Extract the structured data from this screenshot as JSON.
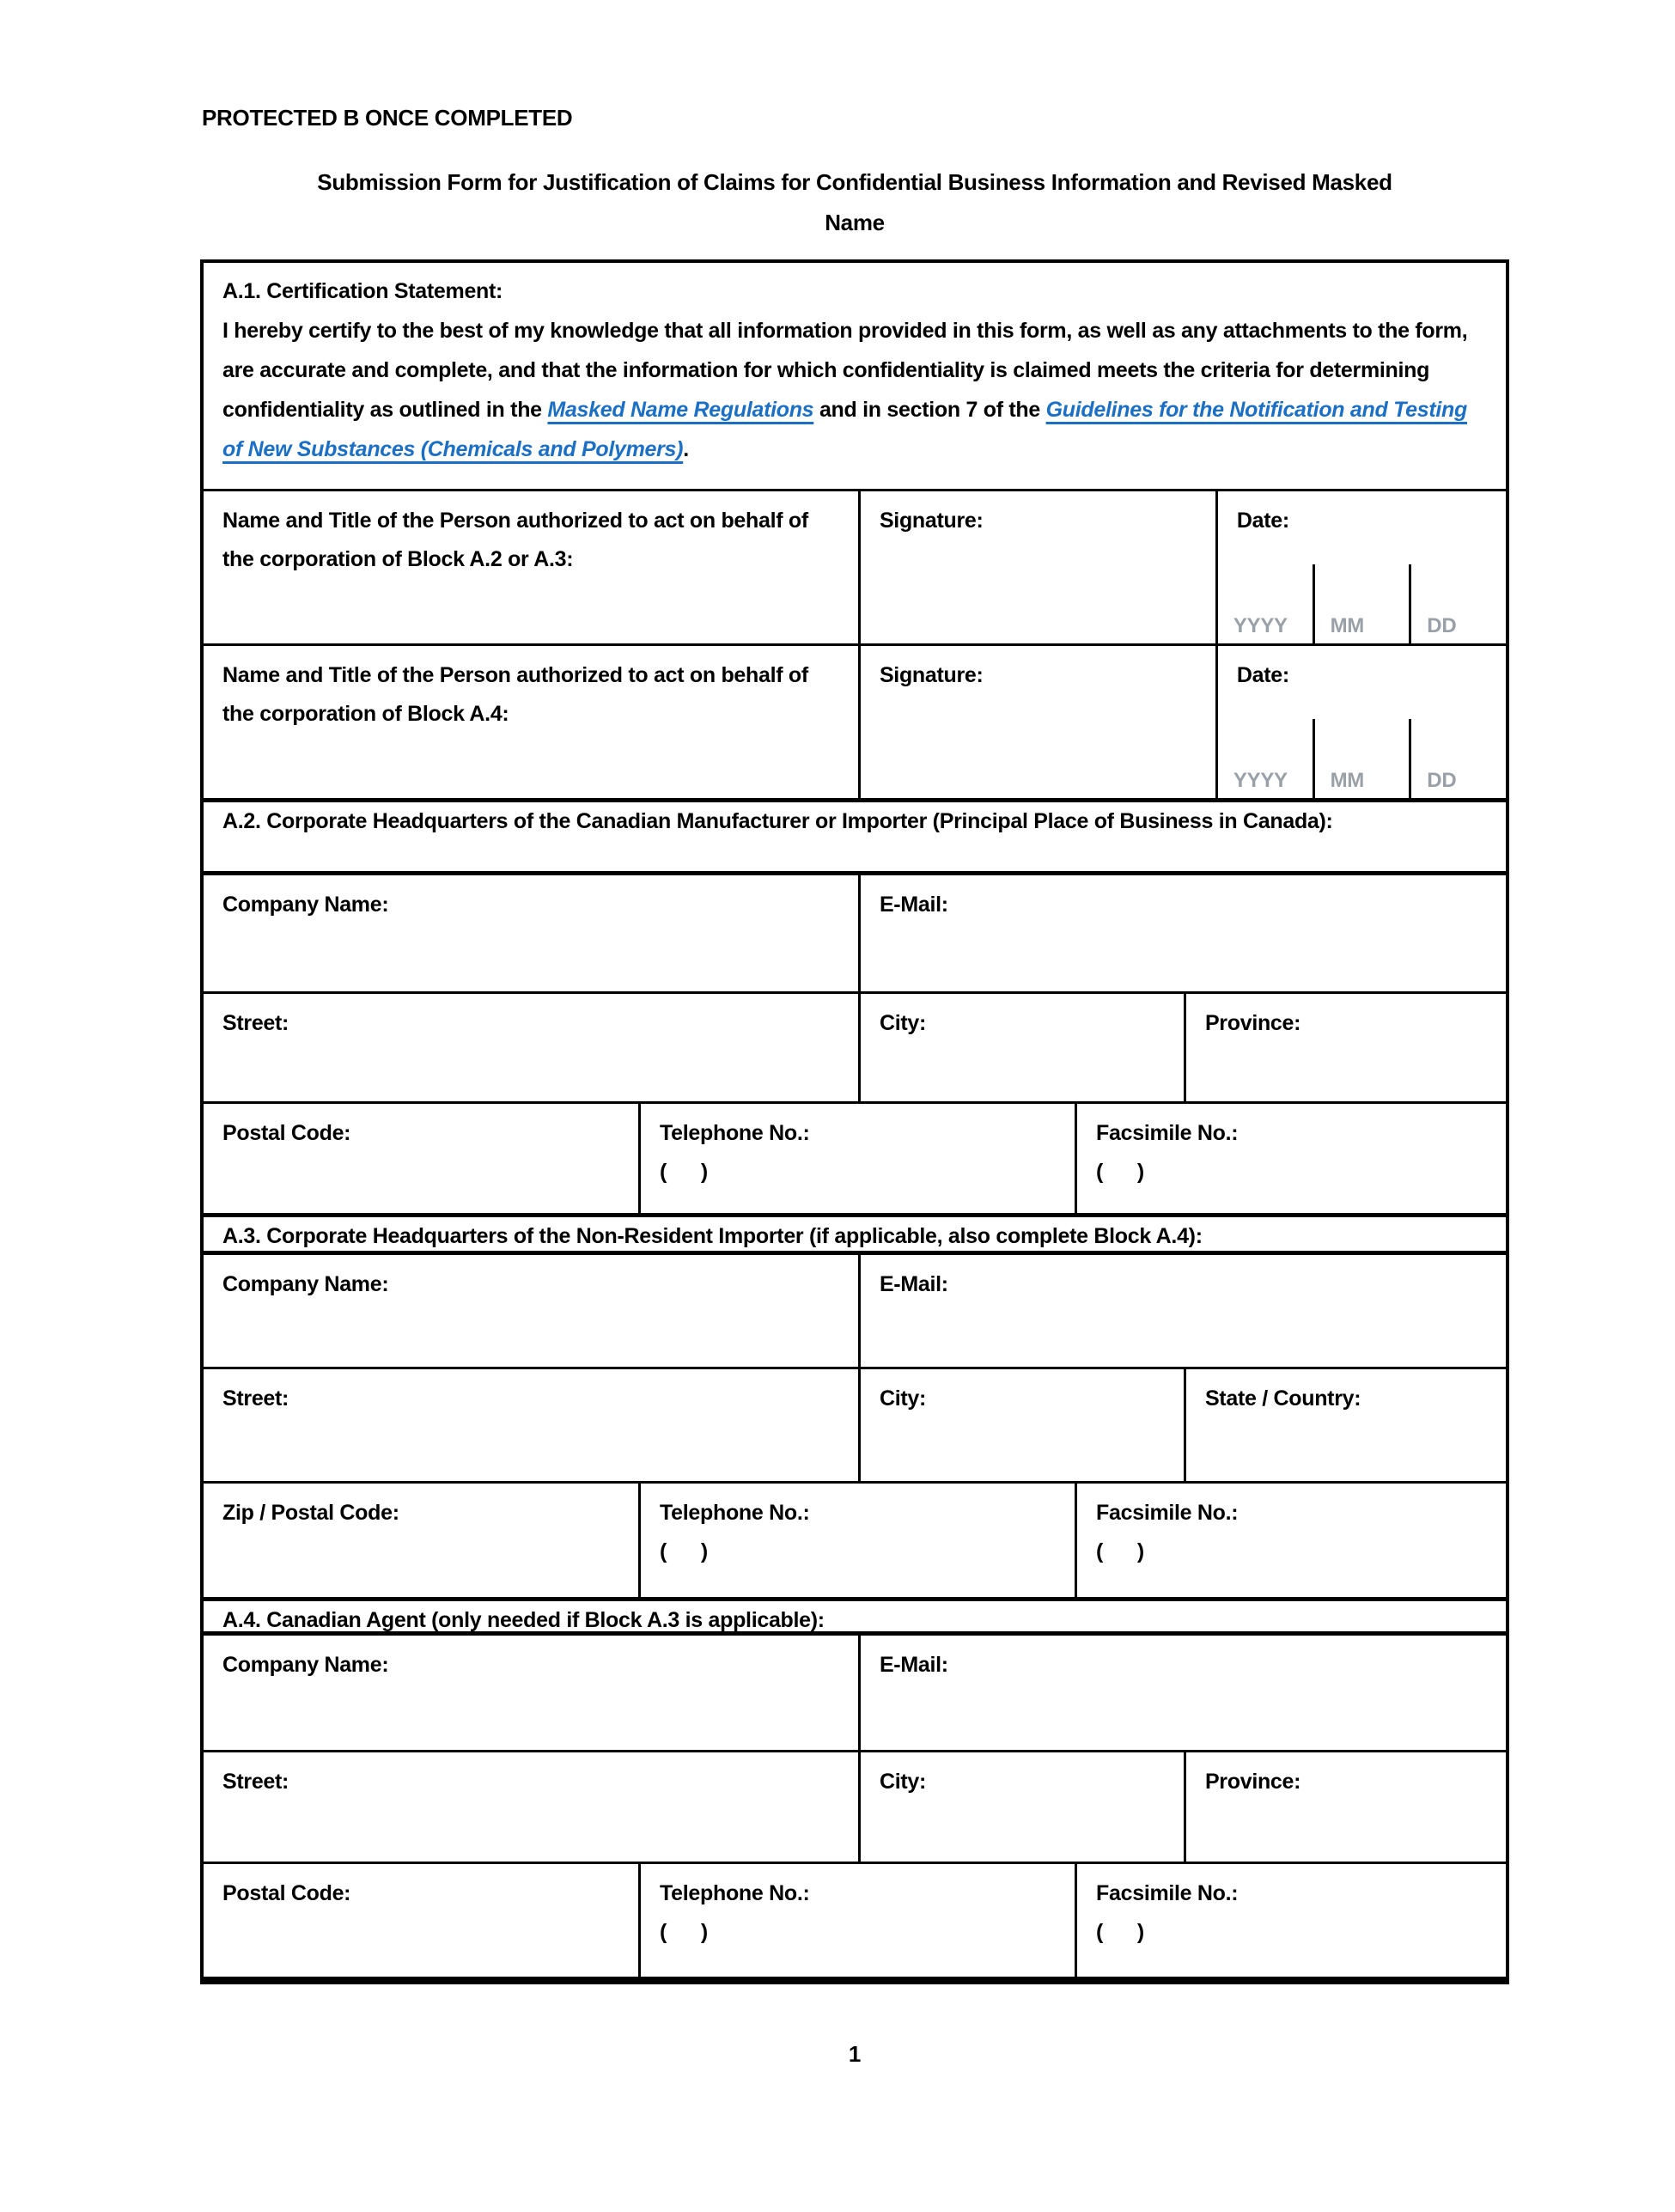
{
  "page": {
    "protected_label": "PROTECTED B ONCE COMPLETED",
    "title_line1": "Submission Form for Justification of Claims for Confidential Business Information and Revised Masked",
    "title_line2": "Name",
    "page_number": "1"
  },
  "colors": {
    "link_blue": "#1b6fc4",
    "date_hint_gray": "#9aa0a8",
    "border_black": "#000000",
    "page_background": "#ffffff"
  },
  "a1": {
    "heading": "A.1. Certification Statement:",
    "body_part1": "I hereby certify to the best of my knowledge that all information provided in this form, as well as any attachments to the form, are accurate and complete, and that the information for which confidentiality is claimed meets the criteria for determining confidentiality as outlined in the ",
    "link1": "Masked Name Regulations",
    "body_part2": " and in section 7 of the ",
    "link2": "Guidelines for the Notification and Testing of New Substances (Chemicals and Polymers)",
    "body_part3": "."
  },
  "date_hints": [
    "YYYY",
    "MM",
    "DD"
  ],
  "paren_hint": "(      )",
  "signature_rows": [
    {
      "name_label": "Name and Title of the Person authorized to act on behalf of the corporation of Block A.2 or A.3:",
      "signature_label": "Signature:",
      "date_label": "Date:"
    },
    {
      "name_label": "Name and Title of the Person authorized to act on behalf of the corporation of Block A.4:",
      "signature_label": "Signature:",
      "date_label": "Date:"
    }
  ],
  "sections": {
    "a2": {
      "heading": "A.2. Corporate Headquarters of the Canadian Manufacturer or Importer (Principal Place of Business in Canada):",
      "company_label": "Company Name:",
      "email_label": "E-Mail:",
      "street_label": "Street:",
      "city_label": "City:",
      "region_label": "Province:",
      "postal_label": "Postal Code:",
      "phone_label": "Telephone No.:",
      "fax_label": "Facsimile No.:"
    },
    "a3": {
      "heading": "A.3. Corporate Headquarters of the Non-Resident Importer (if applicable, also complete Block A.4):",
      "company_label": "Company Name:",
      "email_label": "E-Mail:",
      "street_label": "Street:",
      "city_label": "City:",
      "region_label": "State / Country:",
      "postal_label": "Zip / Postal Code:",
      "phone_label": "Telephone No.:",
      "fax_label": "Facsimile No.:"
    },
    "a4": {
      "heading": "A.4. Canadian Agent (only needed if Block A.3 is applicable):",
      "company_label": "Company Name:",
      "email_label": "E-Mail:",
      "street_label": "Street:",
      "city_label": "City:",
      "region_label": "Province:",
      "postal_label": "Postal Code:",
      "phone_label": "Telephone No.:",
      "fax_label": "Facsimile No.:"
    }
  }
}
